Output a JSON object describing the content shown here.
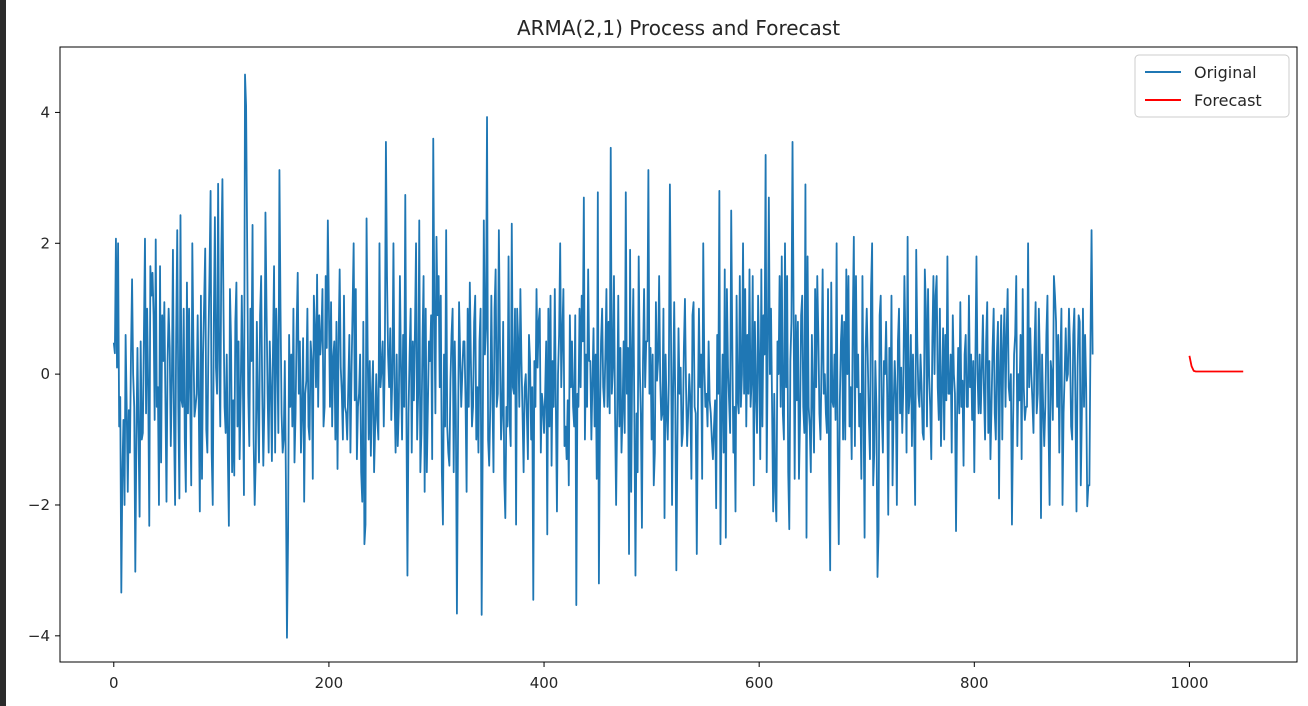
{
  "chart_data": {
    "type": "line",
    "title": "ARMA(2,1) Process and Forecast",
    "xlabel": "",
    "ylabel": "",
    "xlim": [
      -50,
      1100
    ],
    "ylim": [
      -4.4,
      5.0
    ],
    "xticks": [
      0,
      200,
      400,
      600,
      800,
      1000
    ],
    "yticks": [
      -4,
      -2,
      0,
      2,
      4
    ],
    "xtick_labels": [
      "0",
      "200",
      "400",
      "600",
      "800",
      "1000"
    ],
    "ytick_labels": [
      "−4",
      "−2",
      "0",
      "2",
      "4"
    ],
    "legend": {
      "placement": "top-right",
      "entries": [
        "Original",
        "Forecast"
      ]
    },
    "series": [
      {
        "name": "Original",
        "color": "#1f77b4",
        "x_start": 0,
        "values": [
          0.48,
          0.32,
          2.07,
          0.1,
          2.0,
          -0.8,
          -0.35,
          -3.34,
          -1.5,
          -0.7,
          -2.0,
          0.6,
          -0.5,
          -1.8,
          -0.55,
          -1.2,
          0.3,
          1.45,
          0.0,
          -0.5,
          -3.02,
          -1.0,
          0.4,
          -0.9,
          -2.18,
          0.5,
          -1.0,
          -0.9,
          0.6,
          2.07,
          -0.6,
          1.0,
          -0.2,
          -2.32,
          1.65,
          1.2,
          1.55,
          0.9,
          -0.7,
          2.06,
          -0.5,
          -0.2,
          -2.0,
          1.65,
          -1.35,
          0.9,
          0.2,
          1.1,
          -0.4,
          -1.95,
          0.2,
          1.0,
          0.4,
          -1.1,
          -0.1,
          1.9,
          -0.8,
          -2.0,
          0.6,
          2.2,
          -0.5,
          -1.9,
          2.43,
          -0.4,
          -0.5,
          1.0,
          -1.0,
          -1.8,
          1.4,
          -0.6,
          1.0,
          -0.3,
          -1.7,
          2.0,
          0.5,
          -0.65,
          -0.5,
          -0.3,
          0.9,
          -0.5,
          -2.1,
          1.2,
          -1.6,
          0.3,
          1.1,
          1.92,
          -0.85,
          -1.2,
          0.5,
          1.55,
          2.8,
          -1.2,
          -2.0,
          0.8,
          2.4,
          0.1,
          -0.3,
          2.91,
          0.2,
          -0.8,
          1.9,
          2.98,
          1.0,
          -0.5,
          -0.9,
          0.3,
          -1.2,
          -2.32,
          1.3,
          0.5,
          -1.5,
          -0.4,
          -1.55,
          0.8,
          1.4,
          -0.8,
          0.5,
          -1.3,
          -0.3,
          1.2,
          -0.1,
          -1.85,
          4.58,
          4.1,
          2.0,
          -0.3,
          -1.1,
          1.0,
          0.2,
          2.28,
          -1.0,
          -2.0,
          -1.3,
          0.8,
          -0.5,
          -1.35,
          0.9,
          1.5,
          -0.25,
          -1.4,
          -0.5,
          2.47,
          1.0,
          -0.3,
          -1.2,
          0.5,
          -0.2,
          -1.33,
          0.4,
          1.65,
          -1.2,
          1.0,
          0.3,
          -0.9,
          3.12,
          1.0,
          -0.6,
          -1.2,
          -1.0,
          0.2,
          -1.6,
          -4.03,
          -2.5,
          0.6,
          -0.5,
          0.3,
          -0.8,
          1.0,
          -1.35,
          -0.6,
          0.7,
          1.55,
          -0.3,
          0.5,
          -1.2,
          -0.6,
          0.55,
          -1.95,
          -0.3,
          -0.1,
          1.0,
          -0.8,
          -1.0,
          0.5,
          0.2,
          -1.6,
          1.2,
          0.7,
          -0.2,
          1.52,
          -0.5,
          0.9,
          0.3,
          0.6,
          1.3,
          -0.8,
          -0.5,
          1.5,
          0.4,
          2.35,
          1.0,
          -0.5,
          1.1,
          -0.8,
          0.25,
          0.5,
          -1.0,
          0.8,
          -1.45,
          0.5,
          1.6,
          0.1,
          -0.3,
          -1.0,
          1.2,
          -0.5,
          -0.6,
          -1.0,
          -0.2,
          0.6,
          -1.2,
          0.0,
          1.0,
          2.0,
          -0.4,
          1.3,
          -1.3,
          -0.5,
          -0.3,
          0.3,
          -1.5,
          -1.95,
          0.8,
          -2.6,
          -2.3,
          2.38,
          0.4,
          -1.0,
          0.2,
          -1.25,
          -0.3,
          0.2,
          -1.5,
          -0.8,
          0.0,
          -0.7,
          -1.0,
          2.0,
          -0.2,
          0.1,
          0.5,
          -0.8,
          0.3,
          3.55,
          1.5,
          0.3,
          -0.2,
          0.7,
          -0.7,
          0.0,
          2.0,
          -0.3,
          -1.2,
          0.3,
          -1.1,
          -0.5,
          1.5,
          0.1,
          -1.0,
          0.6,
          -0.5,
          2.74,
          -0.5,
          -3.08,
          -0.6,
          0.3,
          1.0,
          -1.2,
          0.5,
          -0.4,
          0.7,
          2.0,
          -1.0,
          -0.3,
          2.35,
          -1.5,
          -0.9,
          0.5,
          1.5,
          -1.8,
          1.0,
          -1.5,
          -0.5,
          0.5,
          0.2,
          0.9,
          -1.3,
          3.6,
          1.0,
          -0.6,
          2.1,
          0.9,
          1.5,
          -0.2,
          1.2,
          -1.5,
          -2.3,
          0.3,
          -0.8,
          2.2,
          -0.8,
          -1.2,
          -1.4,
          -0.1,
          0.6,
          1.0,
          -1.5,
          0.5,
          -0.6,
          -3.66,
          -1.0,
          1.1,
          0.3,
          -0.5,
          0.0,
          0.5,
          0.5,
          -0.4,
          -1.8,
          1.0,
          -0.5,
          1.4,
          0.2,
          -0.8,
          -0.5,
          0.8,
          1.2,
          -1.0,
          -0.2,
          -1.2,
          0.5,
          1.0,
          -3.68,
          -1.0,
          2.35,
          0.3,
          0.7,
          3.93,
          -1.0,
          -1.4,
          -0.5,
          1.2,
          -0.3,
          -1.5,
          1.0,
          1.6,
          -0.5,
          -0.3,
          2.2,
          0.5,
          -1.0,
          -0.6,
          0.8,
          -1.6,
          -2.2,
          -0.5,
          -0.8,
          1.8,
          -0.7,
          -1.1,
          2.3,
          -0.2,
          -0.3,
          1.0,
          -2.3,
          1.0,
          0.5,
          -0.5,
          1.3,
          0.2,
          -0.6,
          -1.5,
          -0.2,
          0.0,
          -0.6,
          -1.3,
          0.6,
          0.2,
          -1.0,
          -0.2,
          -3.45,
          0.2,
          -0.5,
          1.3,
          0.1,
          0.8,
          1.0,
          -1.2,
          -0.3,
          -0.5,
          -0.9,
          -0.3,
          0.5,
          -2.45,
          1.0,
          -0.8,
          1.2,
          -1.4,
          0.2,
          -0.5,
          1.3,
          -0.5,
          -2.1,
          0.0,
          0.6,
          2.0,
          -0.2,
          0.6,
          1.3,
          -1.1,
          -0.8,
          -1.3,
          -0.4,
          -1.7,
          0.9,
          -0.2,
          0.5,
          -0.5,
          -0.8,
          0.9,
          -3.53,
          -0.3,
          -0.5,
          1.0,
          -0.2,
          1.2,
          0.5,
          2.7,
          -1.0,
          0.3,
          -0.5,
          1.6,
          0.2,
          0.2,
          -1.0,
          -0.1,
          0.7,
          -0.8,
          0.3,
          -1.6,
          2.78,
          -3.2,
          -0.6,
          0.5,
          1.0,
          -0.2,
          -0.5,
          0.3,
          1.3,
          -0.5,
          0.8,
          -0.6,
          3.46,
          -0.3,
          0.1,
          1.5,
          -0.6,
          -2.0,
          -0.6,
          1.2,
          -0.8,
          0.4,
          -1.2,
          -0.6,
          0.5,
          -0.9,
          2.78,
          -0.3,
          0.4,
          -2.75,
          1.9,
          -1.8,
          0.3,
          1.3,
          -0.7,
          -3.08,
          -0.6,
          -1.5,
          1.8,
          0.1,
          -0.6,
          -2.35,
          0.2,
          1.3,
          -0.2,
          0.5,
          0.5,
          3.12,
          -0.3,
          0.4,
          -1.0,
          0.3,
          -1.7,
          -1.2,
          1.1,
          -0.1,
          0.2,
          1.5,
          -0.1,
          -0.7,
          -0.6,
          1.0,
          -2.2,
          0.3,
          -0.6,
          -1.0,
          -0.1,
          2.9,
          0.7,
          -2.0,
          -0.2,
          1.1,
          -0.4,
          -3.0,
          -1.0,
          0.7,
          -0.3,
          0.1,
          -1.1,
          -0.9,
          0.4,
          1.15,
          -0.2,
          -1.1,
          -0.6,
          0.0,
          -0.4,
          -1.6,
          0.9,
          1.1,
          -0.5,
          -0.6,
          -2.75,
          -0.6,
          1.0,
          -0.2,
          0.3,
          -1.6,
          2.0,
          0.1,
          -0.5,
          -0.3,
          -0.8,
          0.5,
          -0.4,
          -0.6,
          -1.0,
          -1.3,
          -0.8,
          -0.4,
          -2.05,
          0.6,
          -0.3,
          2.8,
          -2.6,
          -0.7,
          0.3,
          -1.2,
          1.6,
          -2.5,
          1.3,
          0.1,
          -0.4,
          -0.9,
          2.5,
          0.5,
          -1.2,
          -0.5,
          -2.1,
          1.2,
          -0.4,
          -0.6,
          1.5,
          -0.5,
          0.0,
          2.0,
          -0.3,
          1.3,
          -0.8,
          0.6,
          -0.3,
          1.6,
          -0.5,
          -0.1,
          1.5,
          -1.7,
          0.8,
          -0.3,
          -0.9,
          1.2,
          0.2,
          -1.3,
          1.6,
          -0.8,
          0.9,
          0.3,
          3.35,
          -1.5,
          0.4,
          2.7,
          0.0,
          1.0,
          -0.5,
          -2.1,
          -0.3,
          -1.8,
          -2.25,
          0.5,
          0.0,
          1.5,
          -0.5,
          1.8,
          -0.6,
          -1.0,
          2.0,
          -0.2,
          1.5,
          -1.5,
          -2.37,
          0.2,
          0.8,
          3.55,
          1.0,
          -1.6,
          0.9,
          -0.4,
          0.8,
          -1.6,
          -0.7,
          0.9,
          1.2,
          -0.5,
          -0.9,
          2.9,
          -2.5,
          1.8,
          -0.5,
          -0.8,
          -1.5,
          0.6,
          -0.4,
          -1.2,
          1.3,
          -0.2,
          1.5,
          0.6,
          -0.6,
          -1.0,
          0.2,
          1.6,
          -0.3,
          0.0,
          -0.6,
          -0.9,
          1.3,
          -1.5,
          -3.0,
          1.4,
          -0.4,
          -0.5,
          0.3,
          -0.7,
          2.0,
          -1.2,
          -2.6,
          -0.4,
          0.5,
          0.9,
          -1.0,
          0.8,
          -1.0,
          1.6,
          0.0,
          1.5,
          -0.8,
          -0.2,
          -1.3,
          0.8,
          2.1,
          -1.1,
          1.5,
          -0.2,
          0.3,
          -0.8,
          -0.3,
          -1.6,
          1.5,
          -0.5,
          -2.5,
          0.4,
          1.0,
          0.2,
          -0.7,
          -1.3,
          1.3,
          2.0,
          -1.7,
          -1.2,
          0.2,
          -0.5,
          -3.1,
          -2.4,
          0.9,
          1.2,
          -0.6,
          -1.2,
          0.2,
          0.0,
          0.8,
          -0.3,
          -2.15,
          0.4,
          -0.7,
          1.2,
          -1.7,
          -0.5,
          0.2,
          -0.3,
          -2.0,
          0.5,
          1.0,
          -0.6,
          0.1,
          -0.9,
          -0.2,
          1.5,
          0.5,
          -1.2,
          2.1,
          -0.6,
          -0.3,
          0.6,
          -1.1,
          0.3,
          -0.7,
          -2.0,
          1.9,
          0.5,
          -0.3,
          -0.5,
          0.3,
          -0.2,
          -0.9,
          -1.0,
          1.6,
          1.0,
          -0.8,
          1.3,
          0.0,
          -0.5,
          -1.3,
          0.5,
          1.5,
          0.0,
          1.2,
          1.5,
          -0.2,
          -0.7,
          1.0,
          -1.1,
          -0.2,
          0.7,
          -1.0,
          0.6,
          -0.4,
          1.8,
          -0.3,
          -0.3,
          0.3,
          -1.2,
          0.9,
          0.0,
          -0.3,
          -2.4,
          -0.6,
          0.4,
          -0.6,
          1.1,
          -0.5,
          -0.1,
          -1.4,
          0.3,
          0.6,
          -0.5,
          -0.5,
          1.2,
          -0.2,
          0.3,
          -0.7,
          0.2,
          -1.5,
          0.2,
          1.8,
          0.0,
          -0.6,
          0.3,
          -0.6,
          0.1,
          0.9,
          -0.3,
          -1.0,
          0.5,
          1.1,
          -0.9,
          0.2,
          -1.3,
          -0.5,
          0.4,
          1.0,
          -0.6,
          -1.0,
          0.3,
          0.8,
          -1.9,
          0.1,
          0.9,
          -1.0,
          0.4,
          1.0,
          -0.5,
          0.6,
          1.3,
          -0.2,
          -0.4,
          0.0,
          -2.3,
          -0.8,
          0.3,
          0.6,
          1.5,
          -1.1,
          0.0,
          -0.4,
          0.6,
          -1.3,
          1.3,
          -0.2,
          -0.7,
          -0.5,
          -0.5,
          2.0,
          -0.2,
          0.7,
          0.0,
          -0.4,
          -0.9,
          0.4,
          1.1,
          -0.6,
          -0.3,
          1.0,
          0.2,
          -2.2,
          0.3,
          -0.5,
          -1.1,
          -0.5,
          0.6,
          1.2,
          -0.8,
          -2.0,
          0.2,
          0.0,
          -0.7,
          1.5,
          1.2,
          0.8,
          -0.5,
          0.6,
          -1.2,
          0.2,
          1.0,
          -2.0,
          -0.6,
          0.0,
          0.7,
          -0.1,
          0.0,
          1.0,
          0.4,
          -0.8,
          -1.0,
          0.6,
          1.0,
          -0.4,
          -2.1,
          0.1,
          0.9,
          0.8,
          -1.7,
          -0.6,
          1.0,
          -0.5,
          0.6,
          -0.2,
          -2.02,
          -1.7,
          -1.7,
          0.5,
          2.2,
          0.3
        ]
      },
      {
        "name": "Forecast",
        "color": "#ff0000",
        "x": [
          1000,
          1002,
          1004,
          1006,
          1010,
          1020,
          1030,
          1040,
          1050
        ],
        "values": [
          0.28,
          0.12,
          0.05,
          0.04,
          0.04,
          0.04,
          0.04,
          0.04,
          0.04
        ]
      }
    ]
  }
}
